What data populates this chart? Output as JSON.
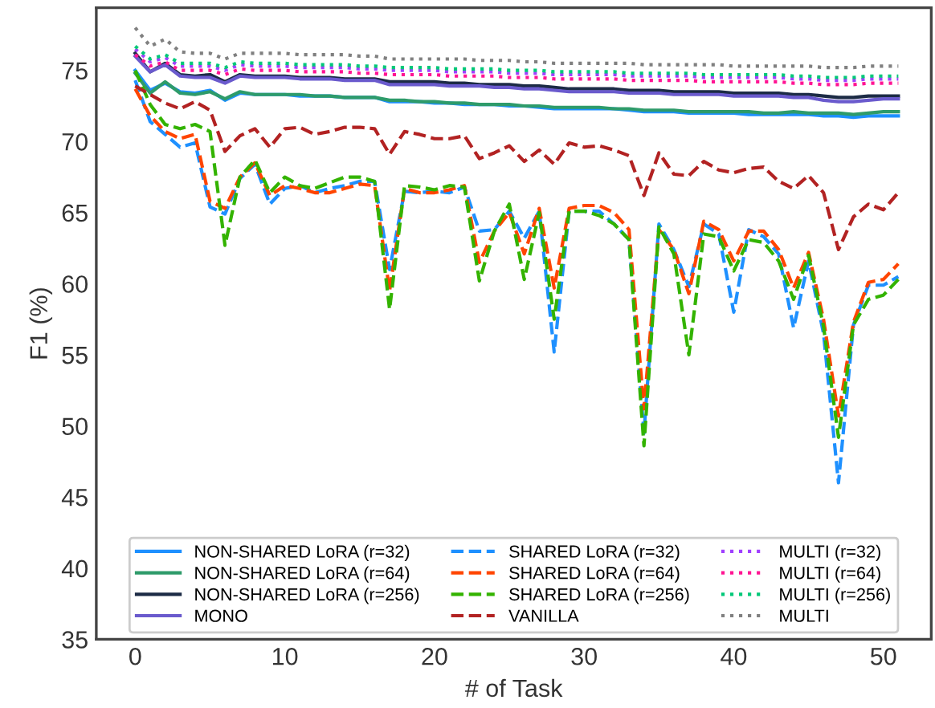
{
  "chart_data": {
    "type": "line",
    "xlabel": "# of Task",
    "ylabel": "F1 (%)",
    "x": [
      0,
      1,
      2,
      3,
      4,
      5,
      6,
      7,
      8,
      9,
      10,
      11,
      12,
      13,
      14,
      15,
      16,
      17,
      18,
      19,
      20,
      21,
      22,
      23,
      24,
      25,
      26,
      27,
      28,
      29,
      30,
      31,
      32,
      33,
      34,
      35,
      36,
      37,
      38,
      39,
      40,
      41,
      42,
      43,
      44,
      45,
      46,
      47,
      48,
      49,
      50,
      51
    ],
    "xlim": [
      -2.6,
      53.2
    ],
    "xticks": [
      0,
      10,
      20,
      30,
      40,
      50
    ],
    "ylim": [
      35,
      79.4
    ],
    "yticks": [
      35,
      40,
      45,
      50,
      55,
      60,
      65,
      70,
      75
    ],
    "grid": false,
    "legend": "bottom",
    "marker": "none",
    "series": [
      {
        "name": "NON-SHARED LoRA (r=32)",
        "color": "#1e90ff",
        "line_style": "solid",
        "values": [
          75.0,
          73.6,
          74.1,
          73.5,
          73.4,
          73.6,
          72.9,
          73.4,
          73.3,
          73.3,
          73.3,
          73.2,
          73.2,
          73.2,
          73.1,
          73.1,
          73.1,
          72.8,
          72.8,
          72.8,
          72.7,
          72.7,
          72.6,
          72.6,
          72.6,
          72.5,
          72.5,
          72.4,
          72.3,
          72.3,
          72.3,
          72.3,
          72.3,
          72.2,
          72.1,
          72.1,
          72.1,
          72.0,
          72.0,
          72.0,
          72.0,
          71.9,
          71.9,
          71.9,
          71.9,
          71.9,
          71.8,
          71.8,
          71.7,
          71.8,
          71.8,
          71.8
        ]
      },
      {
        "name": "NON-SHARED LoRA (r=64)",
        "color": "#2e9b6a",
        "line_style": "solid",
        "values": [
          74.8,
          73.4,
          74.2,
          73.4,
          73.3,
          73.5,
          73.0,
          73.5,
          73.3,
          73.3,
          73.3,
          73.3,
          73.2,
          73.2,
          73.1,
          73.1,
          73.1,
          72.9,
          72.9,
          72.8,
          72.8,
          72.7,
          72.7,
          72.6,
          72.6,
          72.6,
          72.5,
          72.5,
          72.4,
          72.4,
          72.4,
          72.4,
          72.3,
          72.3,
          72.2,
          72.2,
          72.2,
          72.1,
          72.1,
          72.1,
          72.1,
          72.1,
          72.0,
          72.0,
          72.1,
          72.0,
          72.0,
          72.0,
          71.9,
          72.0,
          72.1,
          72.1
        ]
      },
      {
        "name": "NON-SHARED LoRA (r=256)",
        "color": "#1c2b45",
        "line_style": "solid",
        "values": [
          76.2,
          74.9,
          75.5,
          74.7,
          74.6,
          74.7,
          74.2,
          74.7,
          74.6,
          74.6,
          74.6,
          74.5,
          74.5,
          74.5,
          74.4,
          74.4,
          74.4,
          74.2,
          74.2,
          74.2,
          74.2,
          74.1,
          74.1,
          74.0,
          74.0,
          74.0,
          73.9,
          73.9,
          73.8,
          73.7,
          73.7,
          73.7,
          73.7,
          73.6,
          73.6,
          73.6,
          73.5,
          73.5,
          73.5,
          73.5,
          73.4,
          73.4,
          73.4,
          73.4,
          73.3,
          73.3,
          73.2,
          73.1,
          73.1,
          73.2,
          73.2,
          73.2
        ]
      },
      {
        "name": "MONO",
        "color": "#6a5acd",
        "line_style": "solid",
        "values": [
          76.0,
          74.9,
          75.4,
          74.6,
          74.5,
          74.5,
          74.1,
          74.6,
          74.5,
          74.5,
          74.5,
          74.4,
          74.4,
          74.4,
          74.3,
          74.3,
          74.3,
          74.0,
          74.0,
          74.0,
          74.0,
          73.9,
          73.9,
          73.9,
          73.8,
          73.8,
          73.7,
          73.7,
          73.6,
          73.5,
          73.5,
          73.5,
          73.5,
          73.4,
          73.4,
          73.4,
          73.3,
          73.3,
          73.3,
          73.3,
          73.2,
          73.2,
          73.2,
          73.2,
          73.1,
          73.1,
          72.9,
          72.8,
          72.8,
          72.9,
          73.0,
          73.0
        ]
      },
      {
        "name": "SHARED LoRA (r=32)",
        "color": "#1e90ff",
        "line_style": "dashed",
        "values": [
          74.3,
          71.4,
          70.5,
          69.6,
          69.9,
          65.4,
          64.9,
          67.4,
          68.4,
          65.6,
          66.7,
          66.9,
          66.4,
          66.7,
          66.9,
          67.2,
          67.2,
          61.0,
          66.5,
          66.4,
          66.5,
          66.4,
          66.8,
          63.7,
          63.8,
          65.1,
          63.2,
          65.1,
          55.2,
          65.1,
          65.1,
          65.1,
          64.2,
          63.1,
          49.5,
          64.2,
          62.4,
          59.8,
          64.2,
          63.5,
          58.0,
          63.8,
          63.3,
          62.1,
          56.9,
          61.6,
          56.5,
          46.0,
          57.1,
          59.9,
          59.9,
          60.5
        ]
      },
      {
        "name": "SHARED LoRA (r=64)",
        "color": "#ff4500",
        "line_style": "dashed",
        "values": [
          73.7,
          71.8,
          70.7,
          70.2,
          70.5,
          65.8,
          65.3,
          67.5,
          68.5,
          66.2,
          66.9,
          66.7,
          66.4,
          66.4,
          66.7,
          67.0,
          66.9,
          59.5,
          66.7,
          66.4,
          66.4,
          66.6,
          66.9,
          61.5,
          63.7,
          65.0,
          62.1,
          65.3,
          59.7,
          65.3,
          65.5,
          65.5,
          65.0,
          63.8,
          51.2,
          63.8,
          62.4,
          59.3,
          64.4,
          63.8,
          61.6,
          63.7,
          63.7,
          62.4,
          59.7,
          62.2,
          57.5,
          50.7,
          57.3,
          60.1,
          60.3,
          61.4
        ]
      },
      {
        "name": "SHARED LoRA (r=256)",
        "color": "#33b300",
        "line_style": "dashed",
        "values": [
          75.0,
          72.6,
          71.2,
          70.9,
          71.2,
          70.7,
          62.7,
          67.5,
          68.7,
          66.4,
          67.5,
          66.9,
          66.7,
          67.1,
          67.5,
          67.5,
          67.2,
          58.2,
          66.9,
          66.8,
          66.6,
          66.9,
          66.8,
          60.2,
          63.7,
          65.6,
          60.3,
          65.0,
          57.5,
          65.1,
          65.1,
          64.8,
          64.2,
          63.1,
          48.6,
          64.0,
          62.1,
          55.0,
          63.5,
          63.3,
          60.9,
          63.1,
          62.9,
          61.6,
          58.9,
          62.0,
          57.0,
          49.2,
          57.1,
          58.9,
          59.2,
          60.3
        ]
      },
      {
        "name": "VANILLA",
        "color": "#b22222",
        "line_style": "dashed",
        "values": [
          73.9,
          73.3,
          72.7,
          72.3,
          72.8,
          72.2,
          69.3,
          70.4,
          70.9,
          69.6,
          70.9,
          71.0,
          70.5,
          70.7,
          71.0,
          71.0,
          70.9,
          69.1,
          70.7,
          70.5,
          70.2,
          70.2,
          70.4,
          68.8,
          69.2,
          69.7,
          68.6,
          69.4,
          68.4,
          69.9,
          69.6,
          69.7,
          69.4,
          69.0,
          66.2,
          69.2,
          67.7,
          67.6,
          68.6,
          68.0,
          67.8,
          68.1,
          68.2,
          67.2,
          66.7,
          67.6,
          66.4,
          62.4,
          64.7,
          65.6,
          65.2,
          66.4
        ]
      },
      {
        "name": "MULTI (r=32)",
        "color": "#a040ff",
        "line_style": "dotted",
        "values": [
          76.5,
          75.6,
          75.9,
          75.3,
          75.3,
          75.3,
          75.0,
          75.4,
          75.3,
          75.3,
          75.3,
          75.2,
          75.2,
          75.2,
          75.2,
          75.1,
          75.1,
          75.0,
          75.0,
          75.0,
          75.0,
          74.9,
          74.9,
          74.9,
          74.9,
          74.8,
          74.8,
          74.8,
          74.7,
          74.7,
          74.7,
          74.7,
          74.7,
          74.6,
          74.6,
          74.6,
          74.6,
          74.6,
          74.5,
          74.5,
          74.5,
          74.5,
          74.5,
          74.5,
          74.4,
          74.4,
          74.3,
          74.3,
          74.3,
          74.4,
          74.4,
          74.4
        ]
      },
      {
        "name": "MULTI (r=64)",
        "color": "#ff1493",
        "line_style": "dotted",
        "values": [
          76.1,
          75.3,
          75.6,
          75.0,
          75.0,
          75.0,
          74.7,
          75.1,
          75.0,
          75.0,
          75.0,
          74.9,
          74.9,
          74.9,
          74.9,
          74.8,
          74.8,
          74.7,
          74.7,
          74.7,
          74.7,
          74.6,
          74.6,
          74.6,
          74.6,
          74.5,
          74.5,
          74.5,
          74.4,
          74.4,
          74.4,
          74.4,
          74.4,
          74.3,
          74.3,
          74.3,
          74.3,
          74.3,
          74.2,
          74.2,
          74.2,
          74.2,
          74.2,
          74.2,
          74.1,
          74.1,
          74.0,
          74.0,
          74.0,
          74.1,
          74.1,
          74.1
        ]
      },
      {
        "name": "MULTI (r=256)",
        "color": "#00c878",
        "line_style": "dotted",
        "values": [
          76.7,
          75.8,
          76.1,
          75.5,
          75.5,
          75.5,
          75.2,
          75.6,
          75.5,
          75.5,
          75.5,
          75.4,
          75.4,
          75.4,
          75.4,
          75.3,
          75.3,
          75.2,
          75.2,
          75.2,
          75.2,
          75.1,
          75.1,
          75.1,
          75.1,
          75.0,
          75.0,
          75.0,
          74.9,
          74.9,
          74.9,
          74.9,
          74.9,
          74.8,
          74.8,
          74.8,
          74.8,
          74.8,
          74.7,
          74.7,
          74.7,
          74.7,
          74.7,
          74.7,
          74.6,
          74.6,
          74.5,
          74.5,
          74.5,
          74.6,
          74.6,
          74.6
        ]
      },
      {
        "name": "MULTI",
        "color": "#808080",
        "line_style": "dotted",
        "values": [
          78.0,
          76.7,
          77.2,
          76.3,
          76.2,
          76.2,
          75.8,
          76.2,
          76.2,
          76.2,
          76.2,
          76.1,
          76.1,
          76.1,
          76.1,
          76.0,
          76.0,
          75.8,
          75.8,
          75.8,
          75.8,
          75.8,
          75.8,
          75.7,
          75.7,
          75.7,
          75.6,
          75.6,
          75.5,
          75.5,
          75.5,
          75.5,
          75.5,
          75.5,
          75.4,
          75.4,
          75.4,
          75.4,
          75.4,
          75.4,
          75.3,
          75.3,
          75.3,
          75.3,
          75.3,
          75.3,
          75.2,
          75.2,
          75.2,
          75.3,
          75.3,
          75.3
        ]
      }
    ]
  }
}
